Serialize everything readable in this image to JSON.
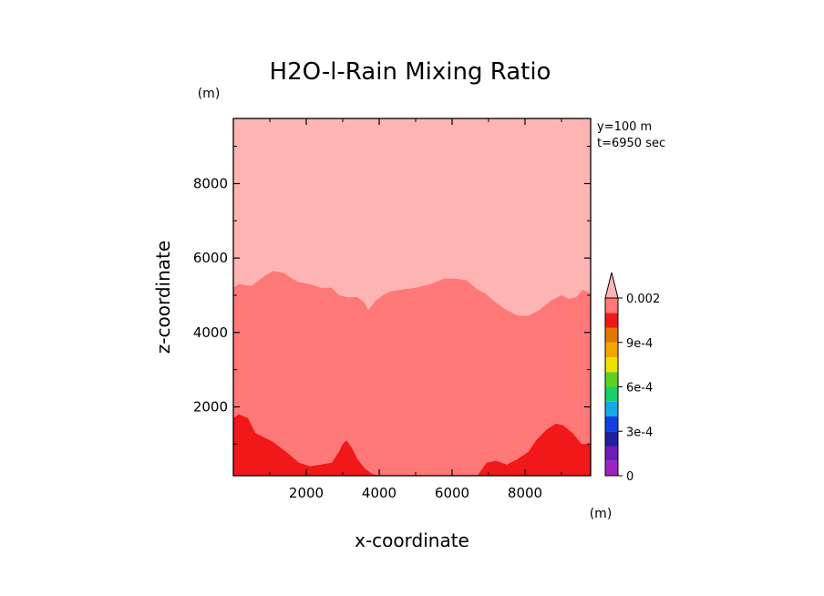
{
  "chart_data": {
    "type": "heatmap",
    "title": "H2O-l-Rain Mixing Ratio",
    "xlabel": "x-coordinate",
    "ylabel": "z-coordinate",
    "x_unit": "(m)",
    "y_unit": "(m)",
    "xlim": [
      0,
      9800
    ],
    "ylim": [
      150,
      9750
    ],
    "x_ticks": [
      2000,
      4000,
      6000,
      8000
    ],
    "y_ticks": [
      2000,
      4000,
      6000,
      8000
    ],
    "x_tick_labels": [
      "2000",
      "4000",
      "6000",
      "8000"
    ],
    "y_tick_labels": [
      "2000",
      "4000",
      "6000",
      "8000"
    ],
    "annotations": [
      "y=100 m",
      "t=6950 sec"
    ],
    "colorbar": {
      "levels": [
        0,
        0.0001,
        0.0002,
        0.0003,
        0.0004,
        0.0005,
        0.0006,
        0.0007,
        0.0008,
        0.0009,
        0.001,
        0.0015,
        0.002
      ],
      "colors": [
        "#a020c0",
        "#6a1bb8",
        "#1f1fa0",
        "#1040e0",
        "#18a8e8",
        "#18d068",
        "#60d020",
        "#f0e000",
        "#f0a800",
        "#e07800",
        "#f01818",
        "#ff7878",
        "#ffb4b4"
      ],
      "tick_values": [
        0,
        0.0003,
        0.0006,
        0.0009,
        0.002
      ],
      "tick_labels": [
        "0",
        "3e-4",
        "6e-4",
        "9e-4",
        "0.002"
      ],
      "extend": "max"
    },
    "regions": [
      {
        "name": "upper",
        "level_range": ">0.002",
        "color": "#ffb4b4",
        "lower_boundary": [
          [
            0,
            5200
          ],
          [
            150,
            5300
          ],
          [
            500,
            5250
          ],
          [
            900,
            5550
          ],
          [
            1100,
            5650
          ],
          [
            1400,
            5600
          ],
          [
            1600,
            5450
          ],
          [
            1800,
            5350
          ],
          [
            2100,
            5300
          ],
          [
            2400,
            5200
          ],
          [
            2700,
            5200
          ],
          [
            2900,
            5000
          ],
          [
            3100,
            4950
          ],
          [
            3400,
            4950
          ],
          [
            3600,
            4800
          ],
          [
            3700,
            4600
          ],
          [
            3900,
            4850
          ],
          [
            4100,
            5000
          ],
          [
            4300,
            5100
          ],
          [
            4600,
            5150
          ],
          [
            5000,
            5200
          ],
          [
            5400,
            5300
          ],
          [
            5800,
            5450
          ],
          [
            6100,
            5450
          ],
          [
            6400,
            5400
          ],
          [
            6700,
            5150
          ],
          [
            6900,
            5050
          ],
          [
            7200,
            4800
          ],
          [
            7500,
            4600
          ],
          [
            7800,
            4450
          ],
          [
            8100,
            4450
          ],
          [
            8400,
            4600
          ],
          [
            8700,
            4850
          ],
          [
            9000,
            5000
          ],
          [
            9200,
            4900
          ],
          [
            9400,
            4950
          ],
          [
            9600,
            5150
          ],
          [
            9800,
            5050
          ]
        ]
      },
      {
        "name": "middle",
        "level_range": "0.0015-0.002",
        "color": "#ff7878"
      },
      {
        "name": "lower",
        "level_range": "0.001-0.0015",
        "color": "#f01818",
        "upper_boundary": [
          [
            0,
            1700
          ],
          [
            150,
            1800
          ],
          [
            400,
            1700
          ],
          [
            600,
            1300
          ],
          [
            900,
            1150
          ],
          [
            1100,
            1050
          ],
          [
            1300,
            900
          ],
          [
            1500,
            750
          ],
          [
            1800,
            500
          ],
          [
            2100,
            400
          ],
          [
            2400,
            450
          ],
          [
            2700,
            500
          ],
          [
            2900,
            800
          ],
          [
            3000,
            1000
          ],
          [
            3100,
            1100
          ],
          [
            3250,
            900
          ],
          [
            3400,
            600
          ],
          [
            3600,
            350
          ],
          [
            3800,
            200
          ],
          [
            4000,
            150
          ],
          [
            6700,
            150
          ],
          [
            6800,
            300
          ],
          [
            6950,
            500
          ],
          [
            7200,
            550
          ],
          [
            7500,
            450
          ],
          [
            7800,
            600
          ],
          [
            8100,
            800
          ],
          [
            8300,
            1100
          ],
          [
            8600,
            1400
          ],
          [
            8850,
            1550
          ],
          [
            9050,
            1500
          ],
          [
            9300,
            1300
          ],
          [
            9550,
            1000
          ],
          [
            9800,
            1000
          ]
        ]
      }
    ]
  }
}
